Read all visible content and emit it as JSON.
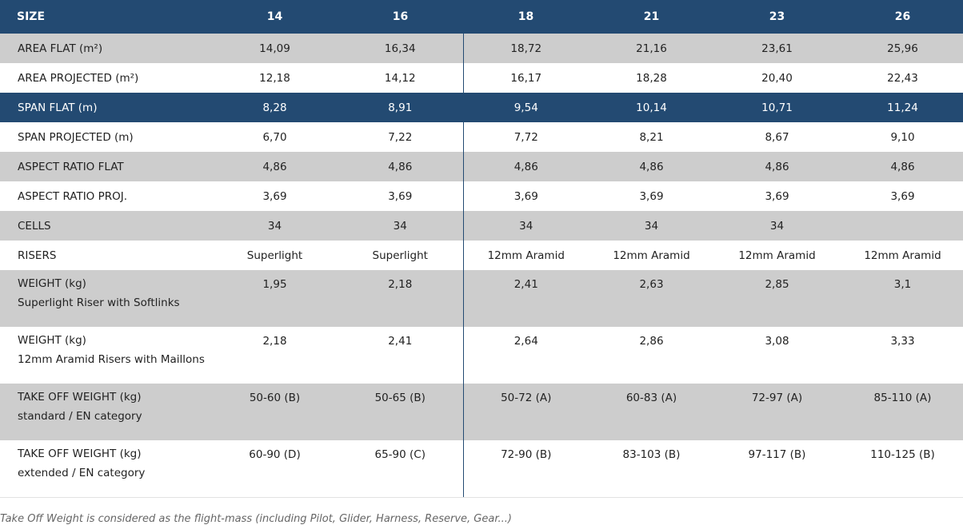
{
  "header": [
    "SIZE",
    "14",
    "16",
    "18",
    "21",
    "23",
    "26"
  ],
  "rows": [
    {
      "label": "AREA FLAT (m²)",
      "sub": "",
      "values": [
        "14,09",
        "16,34",
        "18,72",
        "21,16",
        "23,61",
        "25,96"
      ],
      "style": "grey"
    },
    {
      "label": "AREA PROJECTED (m²)",
      "sub": "",
      "values": [
        "12,18",
        "14,12",
        "16,17",
        "18,28",
        "20,40",
        "22,43"
      ],
      "style": "white"
    },
    {
      "label": "SPAN FLAT (m)",
      "sub": "",
      "values": [
        "8,28",
        "8,91",
        "9,54",
        "10,14",
        "10,71",
        "11,24"
      ],
      "style": "navy"
    },
    {
      "label": "SPAN PROJECTED (m)",
      "sub": "",
      "values": [
        "6,70",
        "7,22",
        "7,72",
        "8,21",
        "8,67",
        "9,10"
      ],
      "style": "white"
    },
    {
      "label": "ASPECT RATIO FLAT",
      "sub": "",
      "values": [
        "4,86",
        "4,86",
        "4,86",
        "4,86",
        "4,86",
        "4,86"
      ],
      "style": "grey"
    },
    {
      "label": "ASPECT RATIO PROJ.",
      "sub": "",
      "values": [
        "3,69",
        "3,69",
        "3,69",
        "3,69",
        "3,69",
        "3,69"
      ],
      "style": "white"
    },
    {
      "label": "CELLS",
      "sub": "",
      "values": [
        "34",
        "34",
        "34",
        "34",
        "34",
        ""
      ],
      "style": "grey"
    },
    {
      "label": "RISERS",
      "sub": "",
      "values": [
        "Superlight",
        "Superlight",
        "12mm Aramid",
        "12mm Aramid",
        "12mm Aramid",
        "12mm Aramid"
      ],
      "style": "white"
    },
    {
      "label": "WEIGHT (kg)",
      "sub": "Superlight Riser with Softlinks",
      "values": [
        "1,95",
        "2,18",
        "2,41",
        "2,63",
        "2,85",
        "3,1"
      ],
      "style": "grey"
    },
    {
      "label": "WEIGHT (kg)",
      "sub": "12mm Aramid Risers with Maillons",
      "values": [
        "2,18",
        "2,41",
        "2,64",
        "2,86",
        "3,08",
        "3,33"
      ],
      "style": "white"
    },
    {
      "label": "TAKE OFF WEIGHT (kg)",
      "sub": "standard / EN category",
      "values": [
        "50-60 (B)",
        "50-65 (B)",
        "50-72 (A)",
        "60-83 (A)",
        "72-97 (A)",
        "85-110 (A)"
      ],
      "style": "grey"
    },
    {
      "label": "TAKE OFF WEIGHT (kg)",
      "sub": "extended / EN category",
      "values": [
        "60-90 (D)",
        "65-90 (C)",
        "72-90 (B)",
        "83-103 (B)",
        "97-117 (B)",
        "110-125 (B)"
      ],
      "style": "white"
    }
  ],
  "footnote": "Take Off Weight is considered as the flight-mass (including Pilot, Glider, Harness, Reserve, Gear...)"
}
